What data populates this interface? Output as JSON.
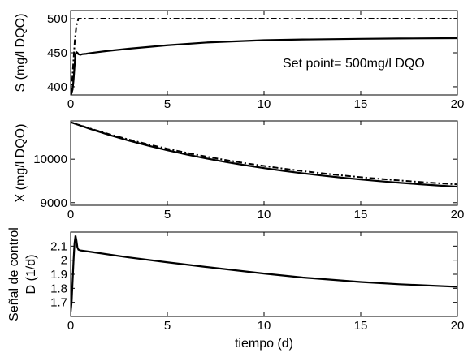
{
  "chart_data": [
    {
      "type": "line",
      "ylabel": "S (mg/l DQO)",
      "xlim": [
        0,
        20
      ],
      "ylim": [
        388,
        512
      ],
      "xticks": [
        "0",
        "5",
        "10",
        "15",
        "20"
      ],
      "yticks": [
        "400",
        "450",
        "500"
      ],
      "annotation": "Set point= 500mg/l DQO",
      "grid": false,
      "series": [
        {
          "style": "dash-dot",
          "x": [
            0,
            0.08,
            0.15,
            0.22,
            0.3,
            0.4,
            0.6,
            1,
            2,
            5,
            10,
            15,
            20
          ],
          "y": [
            390,
            410,
            440,
            470,
            490,
            500,
            500,
            500,
            500,
            500,
            500,
            500,
            500
          ]
        },
        {
          "style": "solid",
          "x": [
            0,
            0.05,
            0.1,
            0.15,
            0.2,
            0.25,
            0.3,
            0.35,
            0.4,
            0.5,
            0.6,
            0.8,
            1,
            2,
            3,
            5,
            7,
            10,
            12,
            15,
            17,
            20
          ],
          "y": [
            393,
            391,
            396,
            410,
            430,
            448,
            451,
            450,
            448,
            447,
            448,
            448.5,
            449.5,
            453,
            456,
            461,
            465,
            468.5,
            469.5,
            470.5,
            471,
            471.5
          ]
        }
      ]
    },
    {
      "type": "line",
      "ylabel": "X (mg/l DQO)",
      "xlim": [
        0,
        20
      ],
      "ylim": [
        8940,
        10880
      ],
      "xticks": [
        "0",
        "5",
        "10",
        "15",
        "20"
      ],
      "yticks": [
        "9000",
        "10000"
      ],
      "grid": false,
      "series": [
        {
          "style": "solid",
          "x": [
            0,
            1,
            2,
            3,
            4,
            5,
            6,
            7,
            8,
            9,
            10,
            11,
            12,
            13,
            14,
            15,
            16,
            17,
            18,
            19,
            20
          ],
          "y": [
            10850,
            10697,
            10557,
            10429,
            10312,
            10205,
            10107,
            10018,
            9937,
            9863,
            9795,
            9733,
            9676,
            9624,
            9577,
            9534,
            9494,
            9458,
            9425,
            9395,
            9368
          ]
        },
        {
          "style": "dash-dot",
          "x": [
            0,
            1,
            2,
            3,
            4,
            5,
            6,
            7,
            8,
            9,
            10,
            11,
            12,
            13,
            14,
            15,
            16,
            17,
            18,
            19,
            20
          ],
          "y": [
            10850,
            10706,
            10574,
            10453,
            10342,
            10240,
            10147,
            10061,
            9982,
            9910,
            9844,
            9783,
            9727,
            9676,
            9629,
            9586,
            9547,
            9511,
            9478,
            9448,
            9420
          ]
        }
      ]
    },
    {
      "type": "line",
      "ylabel": "Señal de control",
      "ylabel2": "D (1/d)",
      "xlabel": "tiempo (d)",
      "xlim": [
        0,
        20
      ],
      "ylim": [
        1.6,
        2.2
      ],
      "xticks": [
        "0",
        "5",
        "10",
        "15",
        "20"
      ],
      "yticks": [
        "1.7",
        "1.8",
        "1.9",
        "2",
        "2.1"
      ],
      "grid": false,
      "series": [
        {
          "style": "solid",
          "x": [
            0,
            0.05,
            0.1,
            0.15,
            0.2,
            0.25,
            0.3,
            0.35,
            0.4,
            0.5,
            1,
            2,
            3,
            5,
            7,
            10,
            12,
            15,
            17,
            20
          ],
          "y": [
            1.63,
            1.7,
            1.85,
            2.0,
            2.12,
            2.175,
            2.14,
            2.09,
            2.075,
            2.07,
            2.06,
            2.04,
            2.02,
            1.985,
            1.952,
            1.905,
            1.877,
            1.845,
            1.829,
            1.811
          ]
        }
      ]
    }
  ]
}
